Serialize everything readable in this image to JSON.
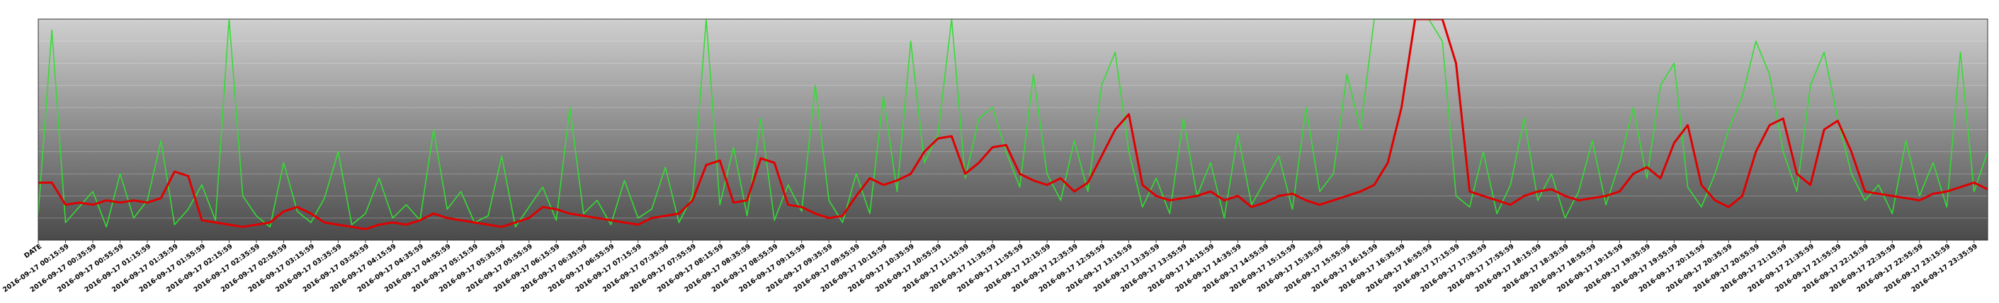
{
  "chart_data": {
    "type": "line",
    "x": [
      0,
      1,
      2,
      3,
      4,
      5,
      6,
      7,
      8,
      9,
      10,
      11,
      12,
      13,
      14,
      15,
      16,
      17,
      18,
      19,
      20,
      21,
      22,
      23,
      24,
      25,
      26,
      27,
      28,
      29,
      30,
      31,
      32,
      33,
      34,
      35,
      36,
      37,
      38,
      39,
      40,
      41,
      42,
      43,
      44,
      45,
      46,
      47,
      48,
      49,
      50,
      51,
      52,
      53,
      54,
      55,
      56,
      57,
      58,
      59,
      60,
      61,
      62,
      63,
      64,
      65,
      66,
      67,
      68,
      69,
      70,
      71,
      72,
      73,
      74,
      75,
      76,
      77,
      78,
      79,
      80,
      81,
      82,
      83,
      84,
      85,
      86,
      87,
      88,
      89,
      90,
      91,
      92,
      93,
      94,
      95,
      96,
      97,
      98,
      99,
      100,
      101,
      102,
      103,
      104,
      105,
      106,
      107,
      108,
      109,
      110,
      111,
      112,
      113,
      114,
      115,
      116,
      117,
      118,
      119,
      120,
      121,
      122,
      123,
      124,
      125,
      126,
      127,
      128,
      129,
      130,
      131,
      132,
      133,
      134,
      135,
      136,
      137,
      138,
      139,
      140,
      141,
      142,
      143
    ],
    "xlim": [
      0,
      143
    ],
    "ylim": [
      0,
      100
    ],
    "xticks": [
      {
        "value": 0,
        "label": "DATE"
      },
      {
        "value": 2,
        "label": "2016-09-17 00:15:59"
      },
      {
        "value": 4,
        "label": "2016-09-17 00:35:59"
      },
      {
        "value": 6,
        "label": "2016-09-17 00:55:59"
      },
      {
        "value": 8,
        "label": "2016-09-17 01:15:59"
      },
      {
        "value": 10,
        "label": "2016-09-17 01:35:59"
      },
      {
        "value": 12,
        "label": "2016-09-17 01:55:59"
      },
      {
        "value": 14,
        "label": "2016-09-17 02:15:59"
      },
      {
        "value": 16,
        "label": "2016-09-17 02:35:59"
      },
      {
        "value": 18,
        "label": "2016-09-17 02:55:59"
      },
      {
        "value": 20,
        "label": "2016-09-17 03:15:59"
      },
      {
        "value": 22,
        "label": "2016-09-17 03:35:59"
      },
      {
        "value": 24,
        "label": "2016-09-17 03:55:59"
      },
      {
        "value": 26,
        "label": "2016-09-17 04:15:59"
      },
      {
        "value": 28,
        "label": "2016-09-17 04:35:59"
      },
      {
        "value": 30,
        "label": "2016-09-17 04:55:59"
      },
      {
        "value": 32,
        "label": "2016-09-17 05:15:59"
      },
      {
        "value": 34,
        "label": "2016-09-17 05:35:59"
      },
      {
        "value": 36,
        "label": "2016-09-17 05:55:59"
      },
      {
        "value": 38,
        "label": "2016-09-17 06:15:59"
      },
      {
        "value": 40,
        "label": "2016-09-17 06:35:59"
      },
      {
        "value": 42,
        "label": "2016-09-17 06:55:59"
      },
      {
        "value": 44,
        "label": "2016-09-17 07:15:59"
      },
      {
        "value": 46,
        "label": "2016-09-17 07:35:59"
      },
      {
        "value": 48,
        "label": "2016-09-17 07:55:59"
      },
      {
        "value": 50,
        "label": "2016-09-17 08:15:59"
      },
      {
        "value": 52,
        "label": "2016-09-17 08:35:59"
      },
      {
        "value": 54,
        "label": "2016-09-17 08:55:59"
      },
      {
        "value": 56,
        "label": "2016-09-17 09:15:59"
      },
      {
        "value": 58,
        "label": "2016-09-17 09:35:59"
      },
      {
        "value": 60,
        "label": "2016-09-17 09:55:59"
      },
      {
        "value": 62,
        "label": "2016-09-17 10:15:59"
      },
      {
        "value": 64,
        "label": "2016-09-17 10:35:59"
      },
      {
        "value": 66,
        "label": "2016-09-17 10:55:59"
      },
      {
        "value": 68,
        "label": "2016-09-17 11:15:59"
      },
      {
        "value": 70,
        "label": "2016-09-17 11:35:59"
      },
      {
        "value": 72,
        "label": "2016-09-17 11:55:59"
      },
      {
        "value": 74,
        "label": "2016-09-17 12:15:59"
      },
      {
        "value": 76,
        "label": "2016-09-17 12:35:59"
      },
      {
        "value": 78,
        "label": "2016-09-17 12:55:59"
      },
      {
        "value": 80,
        "label": "2016-09-17 13:15:59"
      },
      {
        "value": 82,
        "label": "2016-09-17 13:35:59"
      },
      {
        "value": 84,
        "label": "2016-09-17 13:55:59"
      },
      {
        "value": 86,
        "label": "2016-09-17 14:15:59"
      },
      {
        "value": 88,
        "label": "2016-09-17 14:35:59"
      },
      {
        "value": 90,
        "label": "2016-09-17 14:55:59"
      },
      {
        "value": 92,
        "label": "2016-09-17 15:15:59"
      },
      {
        "value": 94,
        "label": "2016-09-17 15:35:59"
      },
      {
        "value": 96,
        "label": "2016-09-17 15:55:59"
      },
      {
        "value": 98,
        "label": "2016-09-17 16:15:59"
      },
      {
        "value": 100,
        "label": "2016-09-17 16:35:59"
      },
      {
        "value": 102,
        "label": "2016-09-17 16:55:59"
      },
      {
        "value": 104,
        "label": "2016-09-17 17:15:59"
      },
      {
        "value": 106,
        "label": "2016-09-17 17:35:59"
      },
      {
        "value": 108,
        "label": "2016-09-17 17:55:59"
      },
      {
        "value": 110,
        "label": "2016-09-17 18:15:59"
      },
      {
        "value": 112,
        "label": "2016-09-17 18:35:59"
      },
      {
        "value": 114,
        "label": "2016-09-17 18:55:59"
      },
      {
        "value": 116,
        "label": "2016-09-17 19:15:59"
      },
      {
        "value": 118,
        "label": "2016-09-17 19:35:59"
      },
      {
        "value": 120,
        "label": "2016-09-17 19:55:59"
      },
      {
        "value": 122,
        "label": "2016-09-17 20:15:59"
      },
      {
        "value": 124,
        "label": "2016-09-17 20:35:59"
      },
      {
        "value": 126,
        "label": "2016-09-17 20:55:59"
      },
      {
        "value": 128,
        "label": "2016-09-17 21:15:59"
      },
      {
        "value": 130,
        "label": "2016-09-17 21:35:59"
      },
      {
        "value": 132,
        "label": "2016-09-17 21:55:59"
      },
      {
        "value": 134,
        "label": "2016-09-17 22:15:59"
      },
      {
        "value": 136,
        "label": "2016-09-17 22:35:59"
      },
      {
        "value": 138,
        "label": "2016-09-17 22:55:59"
      },
      {
        "value": 140,
        "label": "2016-09-17 23:15:59"
      },
      {
        "value": 142,
        "label": "2016-09-17 23:35:59"
      }
    ],
    "series": [
      {
        "color": "#33dd33",
        "values": [
          12,
          95,
          8,
          15,
          22,
          6,
          30,
          10,
          18,
          45,
          7,
          14,
          25,
          9,
          100,
          20,
          11,
          6,
          35,
          13,
          8,
          19,
          40,
          7,
          12,
          28,
          10,
          16,
          9,
          50,
          14,
          22,
          8,
          11,
          38,
          6,
          15,
          24,
          9,
          60,
          12,
          18,
          7,
          27,
          10,
          14,
          33,
          8,
          20,
          100,
          16,
          42,
          11,
          55,
          9,
          25,
          13,
          70,
          18,
          8,
          30,
          12,
          65,
          22,
          90,
          35,
          48,
          100,
          28,
          55,
          60,
          40,
          24,
          75,
          30,
          18,
          45,
          22,
          70,
          85,
          40,
          15,
          28,
          12,
          55,
          20,
          35,
          10,
          48,
          16,
          27,
          38,
          14,
          60,
          22,
          30,
          75,
          50,
          100,
          100,
          100,
          100,
          100,
          90,
          20,
          15,
          40,
          12,
          25,
          55,
          18,
          30,
          10,
          22,
          45,
          16,
          35,
          60,
          28,
          70,
          80,
          24,
          15,
          30,
          50,
          65,
          90,
          75,
          40,
          22,
          70,
          85,
          55,
          30,
          18,
          25,
          12,
          45,
          20,
          35,
          15,
          85,
          22,
          40
        ]
      },
      {
        "color": "#e00000",
        "values": [
          26,
          26,
          16,
          17,
          16,
          18,
          17,
          18,
          17,
          19,
          31,
          29,
          9,
          8,
          7,
          6,
          7,
          8,
          13,
          15,
          12,
          8,
          7,
          6,
          5,
          7,
          8,
          7,
          9,
          12,
          10,
          9,
          8,
          7,
          6,
          8,
          10,
          15,
          14,
          12,
          11,
          10,
          9,
          8,
          7,
          10,
          11,
          12,
          18,
          34,
          36,
          17,
          18,
          37,
          35,
          16,
          15,
          12,
          10,
          11,
          20,
          28,
          25,
          27,
          30,
          40,
          46,
          47,
          30,
          35,
          42,
          43,
          30,
          27,
          25,
          28,
          22,
          26,
          38,
          50,
          57,
          25,
          20,
          18,
          19,
          20,
          22,
          18,
          20,
          15,
          17,
          20,
          21,
          18,
          16,
          18,
          20,
          22,
          25,
          35,
          60,
          100,
          100,
          100,
          80,
          22,
          20,
          18,
          16,
          20,
          22,
          23,
          20,
          18,
          19,
          20,
          22,
          30,
          33,
          28,
          44,
          52,
          25,
          18,
          15,
          20,
          40,
          52,
          55,
          30,
          25,
          50,
          54,
          40,
          22,
          21,
          20,
          19,
          18,
          21,
          22,
          24,
          26,
          23
        ]
      }
    ]
  }
}
